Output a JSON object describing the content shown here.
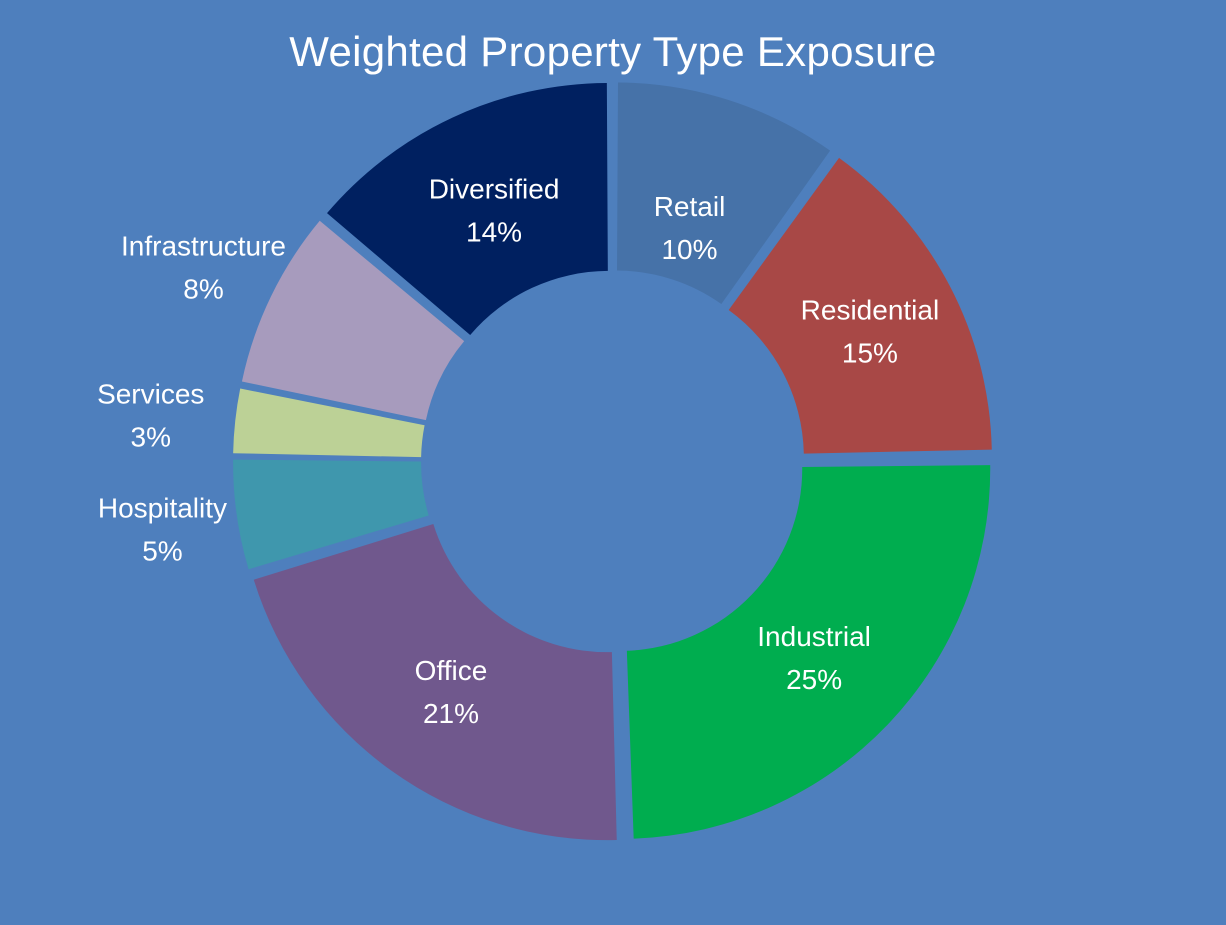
{
  "chart_data": {
    "type": "pie",
    "variant": "donut",
    "title": "Weighted Property Type Exposure",
    "start_angle_deg": 0,
    "direction": "clockwise",
    "slices": [
      {
        "label": "Retail",
        "value": 10,
        "value_label": "10%",
        "color": "#4672a8"
      },
      {
        "label": "Residential",
        "value": 15,
        "value_label": "15%",
        "color": "#a84846"
      },
      {
        "label": "Industrial",
        "value": 25,
        "value_label": "25%",
        "color": "#00ad4f"
      },
      {
        "label": "Office",
        "value": 21,
        "value_label": "21%",
        "color": "#70588d"
      },
      {
        "label": "Hospitality",
        "value": 5,
        "value_label": "5%",
        "color": "#3f97ad"
      },
      {
        "label": "Services",
        "value": 3,
        "value_label": "3%",
        "color": "#bcd196"
      },
      {
        "label": "Infrastructure",
        "value": 8,
        "value_label": "8%",
        "color": "#a79bbd"
      },
      {
        "label": "Diversified",
        "value": 14,
        "value_label": "14%",
        "color": "#002060"
      }
    ],
    "legend": "none",
    "background_color": "#4e7fbd"
  }
}
